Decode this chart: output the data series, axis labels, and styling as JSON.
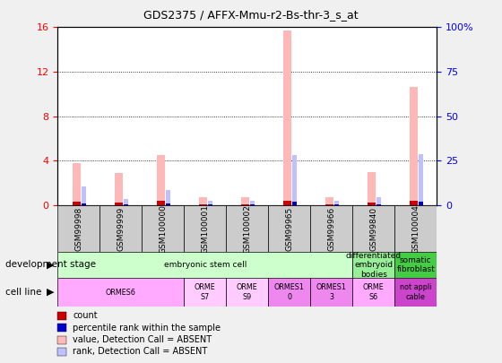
{
  "title": "GDS2375 / AFFX-Mmu-r2-Bs-thr-3_s_at",
  "samples": [
    "GSM99998",
    "GSM99999",
    "GSM100000",
    "GSM100001",
    "GSM100002",
    "GSM99965",
    "GSM99966",
    "GSM99840",
    "GSM100004"
  ],
  "count_values": [
    3.8,
    2.9,
    4.5,
    0.75,
    0.7,
    15.7,
    0.75,
    3.0,
    10.6
  ],
  "percentile_values": [
    10.5,
    3.5,
    8.5,
    2.5,
    2.5,
    28.0,
    2.5,
    4.5,
    28.5
  ],
  "ylim_left": [
    0,
    16
  ],
  "ylim_right": [
    0,
    100
  ],
  "yticks_left": [
    0,
    4,
    8,
    12,
    16
  ],
  "yticks_right": [
    0,
    25,
    50,
    75,
    100
  ],
  "yticklabels_right": [
    "0",
    "25",
    "50",
    "75",
    "100%"
  ],
  "color_count_absent": "#ffb8b8",
  "color_rank_absent": "#c0c0ff",
  "color_count_present": "#cc0000",
  "color_rank_present": "#0000cc",
  "fig_bg": "#e8e8e8",
  "plot_bg": "#ffffff",
  "dev_stage_groups": [
    {
      "label": "embryonic stem cell",
      "start": 0,
      "end": 7,
      "color": "#ccffcc"
    },
    {
      "label": "differentiated\nembryoid\nbodies",
      "start": 7,
      "end": 8,
      "color": "#99ee99"
    },
    {
      "label": "somatic\nfibroblast",
      "start": 8,
      "end": 9,
      "color": "#44cc44"
    }
  ],
  "cell_line_groups": [
    {
      "label": "ORMES6",
      "start": 0,
      "end": 3,
      "color": "#ffaaff"
    },
    {
      "label": "ORME\nS7",
      "start": 3,
      "end": 4,
      "color": "#ffccff"
    },
    {
      "label": "ORME\nS9",
      "start": 4,
      "end": 5,
      "color": "#ffccff"
    },
    {
      "label": "ORMES1\n0",
      "start": 5,
      "end": 6,
      "color": "#ee88ee"
    },
    {
      "label": "ORMES1\n3",
      "start": 6,
      "end": 7,
      "color": "#ee88ee"
    },
    {
      "label": "ORME\nS6",
      "start": 7,
      "end": 8,
      "color": "#ffaaff"
    },
    {
      "label": "not appli\ncable",
      "start": 8,
      "end": 9,
      "color": "#cc44cc"
    }
  ],
  "dev_stage_row_label": "development stage",
  "cell_line_row_label": "cell line",
  "legend_items": [
    {
      "label": "count",
      "color": "#cc0000"
    },
    {
      "label": "percentile rank within the sample",
      "color": "#0000cc"
    },
    {
      "label": "value, Detection Call = ABSENT",
      "color": "#ffb8b8"
    },
    {
      "label": "rank, Detection Call = ABSENT",
      "color": "#c0c0ff"
    }
  ]
}
